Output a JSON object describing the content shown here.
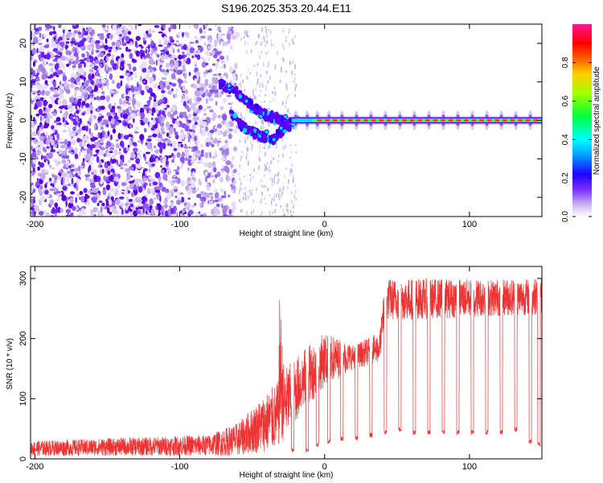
{
  "title": "S196.2025.353.20.44.E11",
  "chart_data": [
    {
      "type": "heatmap",
      "xlabel": "Height of straight line (km)",
      "ylabel": "Frequency (Hz)",
      "xlim": [
        -203,
        150
      ],
      "ylim": [
        -25,
        25
      ],
      "x_ticks": [
        -200,
        -100,
        0,
        100
      ],
      "y_ticks": [
        -20,
        -10,
        0,
        10,
        20
      ],
      "colorbar": {
        "label": "Normalized spectral amplitude",
        "range": [
          0,
          1
        ],
        "ticks": [
          "0.0",
          "0.2",
          "0.4",
          "0.6",
          "0.8"
        ],
        "colors": [
          "#ffffff",
          "#9b7fe0",
          "#5a00ff",
          "#0000ff",
          "#00ffff",
          "#00ff40",
          "#c8ff00",
          "#ff8000",
          "#ff0000",
          "#ff1493"
        ]
      },
      "features": {
        "noise_region_x": [
          -203,
          -60
        ],
        "scattered_region_x": [
          -60,
          -20
        ],
        "chirp_upper_arm": [
          [
            -72,
            9.5
          ],
          [
            -60,
            7
          ],
          [
            -48,
            3
          ],
          [
            -38,
            1
          ],
          [
            -28,
            0
          ]
        ],
        "chirp_lower_arm": [
          [
            -65,
            2
          ],
          [
            -55,
            -2
          ],
          [
            -45,
            -4
          ],
          [
            -35,
            -5
          ],
          [
            -28,
            -2
          ],
          [
            -18,
            0
          ]
        ],
        "tone_frequency": 0,
        "tone_start_x": -25,
        "pulse_positions": [
          -20,
          -12,
          -5,
          3,
          12,
          22,
          32,
          42,
          52,
          62,
          72,
          82,
          92,
          102,
          112,
          122,
          132,
          142
        ]
      }
    },
    {
      "type": "line",
      "xlabel": "Height of straight line (km)",
      "ylabel": "SNR (10 * v/v)",
      "xlim": [
        -203,
        150
      ],
      "ylim": [
        0,
        320
      ],
      "x_ticks": [
        -200,
        -100,
        0,
        100
      ],
      "y_ticks": [
        0,
        100,
        200,
        300
      ],
      "line_color": "#ee3333",
      "envelope": [
        {
          "x": -203,
          "base": 5,
          "peak": 30
        },
        {
          "x": -80,
          "base": 5,
          "peak": 40
        },
        {
          "x": -60,
          "base": 5,
          "peak": 60
        },
        {
          "x": -32,
          "base": 15,
          "peak": 130
        },
        {
          "x": -31,
          "base": 25,
          "peak": 280
        },
        {
          "x": -28,
          "base": 30,
          "peak": 150
        },
        {
          "x": -15,
          "base": 80,
          "peak": 180
        },
        {
          "x": 0,
          "base": 120,
          "peak": 210
        },
        {
          "x": 20,
          "base": 150,
          "peak": 190
        },
        {
          "x": 38,
          "base": 160,
          "peak": 210
        },
        {
          "x": 42,
          "base": 230,
          "peak": 300
        },
        {
          "x": 150,
          "base": 240,
          "peak": 300
        }
      ],
      "dips": [
        {
          "x": -22,
          "depth": 10
        },
        {
          "x": -12,
          "depth": 10
        },
        {
          "x": -5,
          "depth": 20
        },
        {
          "x": 3,
          "depth": 25
        },
        {
          "x": 12,
          "depth": 30
        },
        {
          "x": 22,
          "depth": 30
        },
        {
          "x": 32,
          "depth": 35
        },
        {
          "x": 42,
          "depth": 40
        },
        {
          "x": 52,
          "depth": 45
        },
        {
          "x": 62,
          "depth": 40
        },
        {
          "x": 72,
          "depth": 40
        },
        {
          "x": 82,
          "depth": 40
        },
        {
          "x": 92,
          "depth": 40
        },
        {
          "x": 102,
          "depth": 40
        },
        {
          "x": 112,
          "depth": 40
        },
        {
          "x": 122,
          "depth": 40
        },
        {
          "x": 132,
          "depth": 45
        },
        {
          "x": 142,
          "depth": 25
        },
        {
          "x": 148,
          "depth": 20
        }
      ]
    }
  ]
}
